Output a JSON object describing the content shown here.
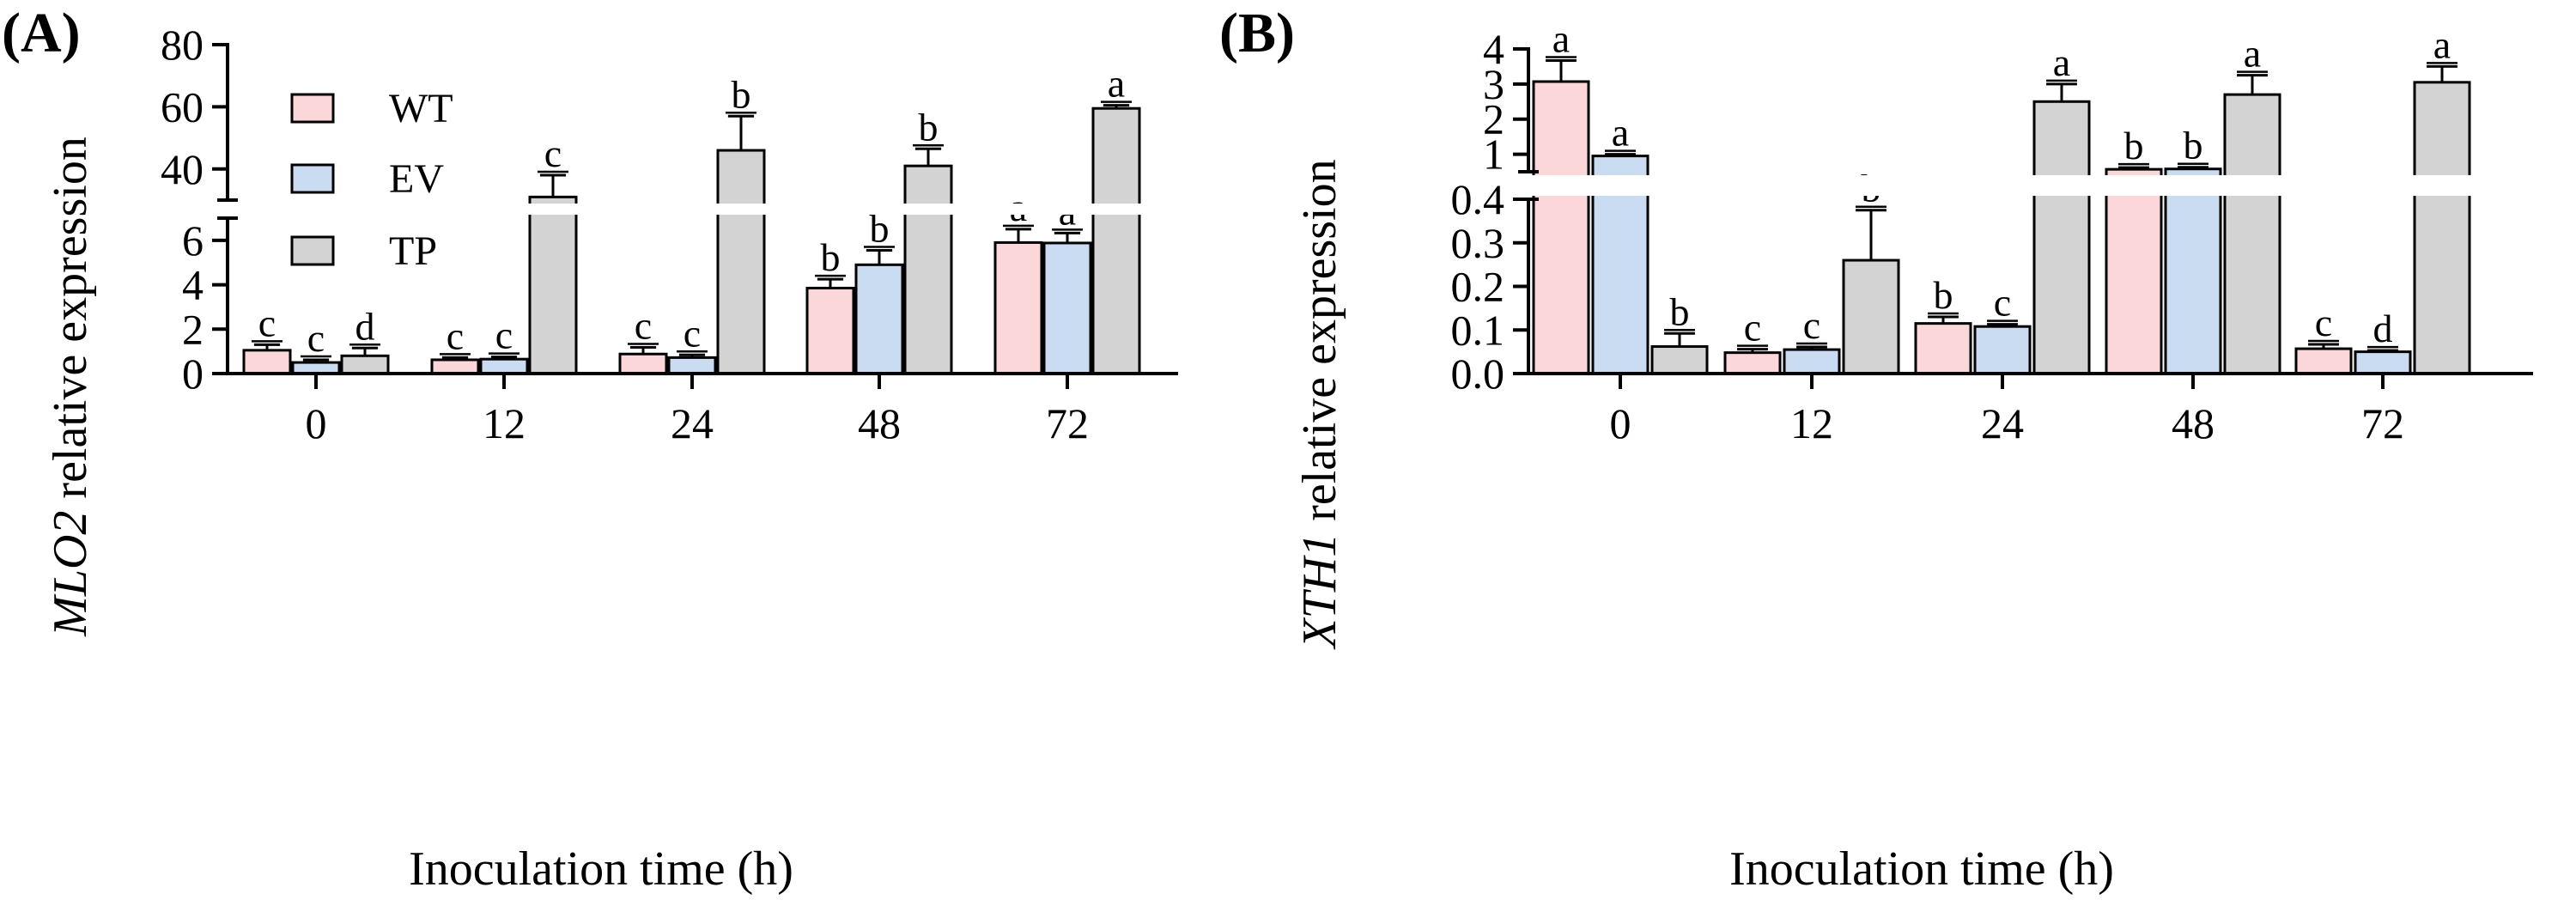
{
  "chart_data": [
    {
      "type": "bar",
      "panel_label": "(A)",
      "ylabel_gene": "MLO2",
      "ylabel_rest": " relative expression",
      "xlabel": "Inoculation time (h)",
      "categories": [
        "0",
        "12",
        "24",
        "48",
        "72"
      ],
      "axis_break": true,
      "ylim_lower": [
        0,
        7
      ],
      "ylim_upper": [
        30,
        80
      ],
      "yticks_lower": [
        0,
        2,
        4,
        6
      ],
      "yticks_upper": [
        40,
        60,
        80
      ],
      "legend": [
        "WT",
        "EV",
        "TP"
      ],
      "series": [
        {
          "name": "WT",
          "color": "#fbd7d9",
          "values": [
            1.05,
            0.62,
            0.88,
            3.85,
            5.9
          ],
          "errors": [
            0.25,
            0.1,
            0.3,
            0.4,
            0.6
          ],
          "letters": [
            "c",
            "c",
            "c",
            "b",
            "a"
          ]
        },
        {
          "name": "EV",
          "color": "#c9dcf1",
          "values": [
            0.5,
            0.65,
            0.72,
            4.9,
            5.88
          ],
          "errors": [
            0.12,
            0.1,
            0.12,
            0.65,
            0.45
          ],
          "letters": [
            "c",
            "c",
            "c",
            "b",
            "a"
          ]
        },
        {
          "name": "TP",
          "color": "#d3d3d3",
          "values": [
            0.8,
            31,
            46,
            41,
            59.5
          ],
          "errors": [
            0.35,
            7,
            11,
            5.5,
            1
          ],
          "letters": [
            "d",
            "c",
            "b",
            "b",
            "a"
          ]
        }
      ]
    },
    {
      "type": "bar",
      "panel_label": "(B)",
      "ylabel_gene": "XTH1",
      "ylabel_rest": " relative expression",
      "xlabel": "Inoculation time (h)",
      "categories": [
        "0",
        "12",
        "24",
        "48",
        "72"
      ],
      "axis_break": true,
      "ylim_lower": [
        0,
        0.4
      ],
      "ylim_upper": [
        0.5,
        4
      ],
      "yticks_lower": [
        "0.0",
        "0.1",
        "0.2",
        "0.3",
        "0.4"
      ],
      "yticks_upper": [
        1,
        2,
        3,
        4
      ],
      "series": [
        {
          "name": "WT",
          "color": "#fbd7d9",
          "values": [
            3.07,
            0.048,
            0.115,
            0.57,
            0.057
          ],
          "errors": [
            0.6,
            0.008,
            0.015,
            0.05,
            0.01
          ],
          "letters": [
            "a",
            "c",
            "b",
            "b",
            "c"
          ]
        },
        {
          "name": "EV",
          "color": "#c9dcf1",
          "values": [
            0.95,
            0.055,
            0.108,
            0.58,
            0.05
          ],
          "errors": [
            0.05,
            0.006,
            0.005,
            0.05,
            0.003
          ],
          "letters": [
            "a",
            "c",
            "c",
            "b",
            "d"
          ]
        },
        {
          "name": "TP",
          "color": "#d3d3d3",
          "values": [
            0.062,
            0.26,
            2.5,
            2.7,
            3.05
          ],
          "errors": [
            0.03,
            0.115,
            0.5,
            0.55,
            0.45
          ],
          "letters": [
            "b",
            "b",
            "a",
            "a",
            "a"
          ]
        }
      ]
    }
  ]
}
